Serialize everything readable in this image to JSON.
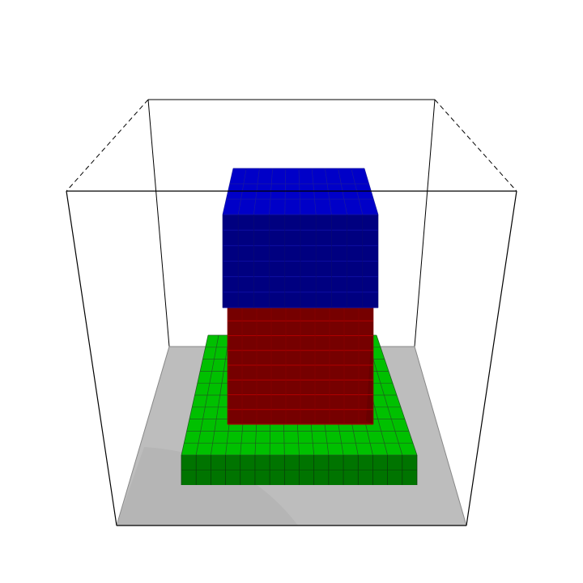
{
  "scene": {
    "colors": {
      "background": "#ffffff",
      "floor": "#bdbdbd",
      "floor_shade": "#b3b3b3",
      "green_top": "#00c000",
      "green_front": "#007500",
      "red_front": "#760000",
      "red_line": "#b40000",
      "blue_top": "#0000c8",
      "blue_front": "#000080",
      "grid_line": "#2a2a2a",
      "box_line": "#000000"
    },
    "layers": [
      {
        "name": "green",
        "material": "base-slab"
      },
      {
        "name": "red",
        "material": "middle-column"
      },
      {
        "name": "blue",
        "material": "top-column"
      }
    ]
  }
}
